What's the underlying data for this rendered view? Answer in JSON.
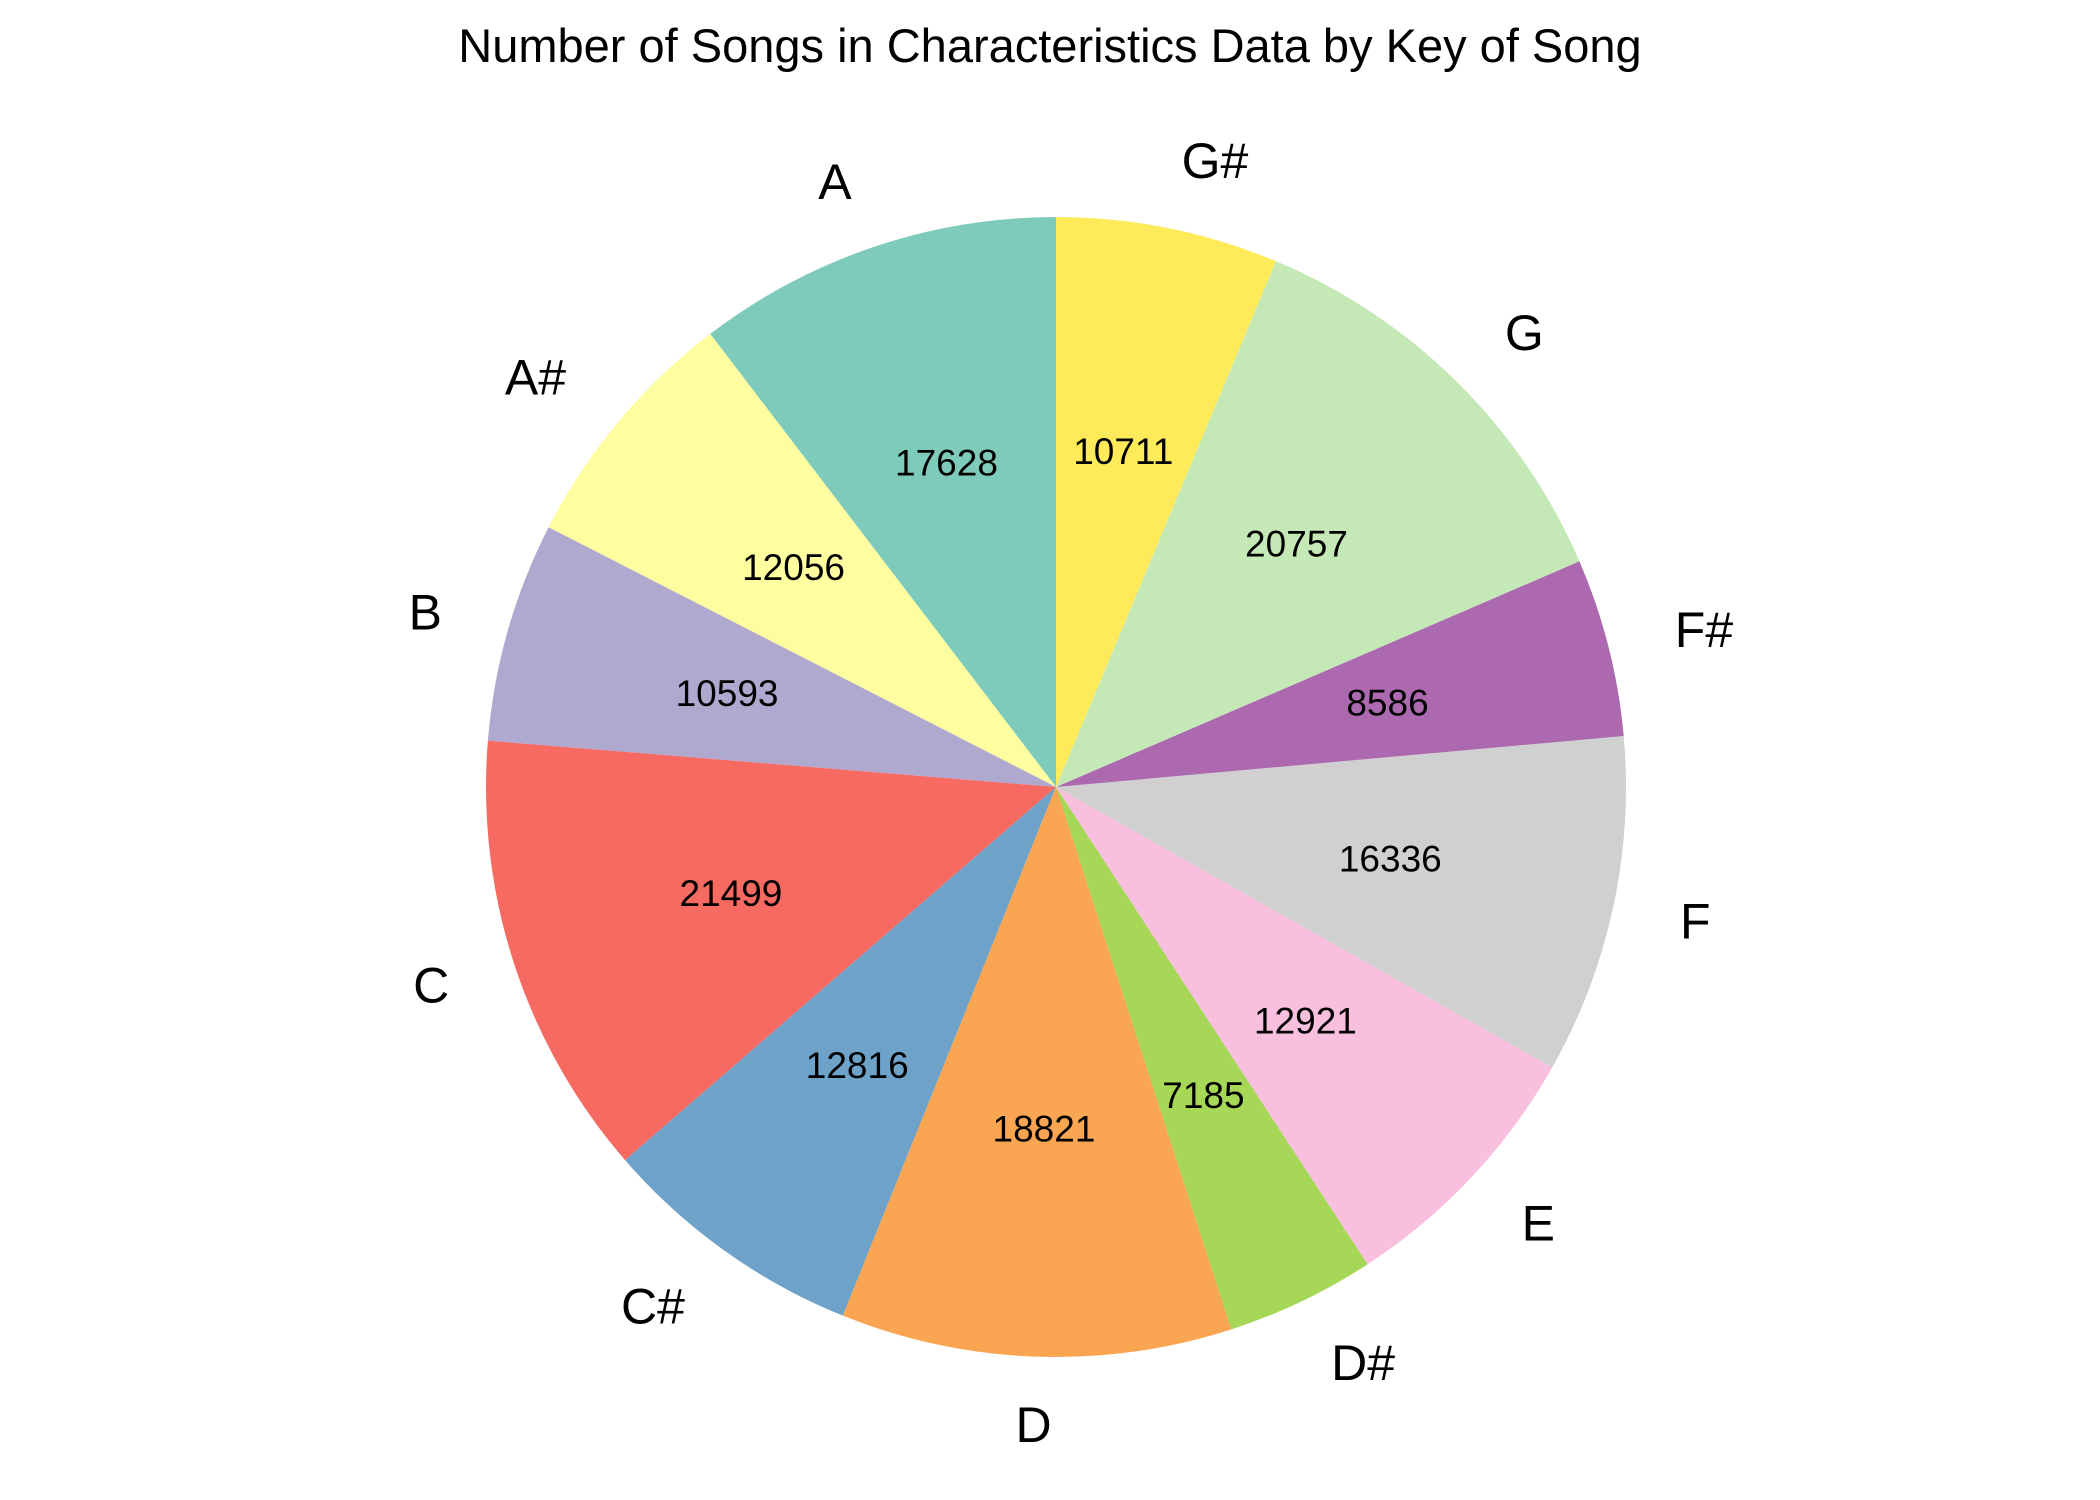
{
  "chart_data": {
    "type": "pie",
    "title": "Number of Songs in Characteristics Data by Key of Song",
    "categories": [
      "A",
      "A#",
      "B",
      "C",
      "C#",
      "D",
      "D#",
      "E",
      "F",
      "F#",
      "G",
      "G#"
    ],
    "values": [
      17628,
      12056,
      10593,
      21499,
      12816,
      18821,
      7185,
      12921,
      16336,
      8586,
      20757,
      10711
    ],
    "value_labels": [
      "17628",
      "12056",
      "10593",
      "21499",
      "12816",
      "18821",
      "7185",
      "12921",
      "16336",
      "8586",
      "20757",
      "10711"
    ],
    "colors": [
      "#7fcbbb",
      "#fefda0",
      "#b0a9cf",
      "#f66a61",
      "#6fa2c9",
      "#faa551",
      "#a6d757",
      "#f8bfdf",
      "#d0d0d0",
      "#ac69af",
      "#c5e8b7",
      "#ffeb5a"
    ],
    "start_angle_deg": 90,
    "direction": "counterclockwise",
    "legend": "none"
  }
}
